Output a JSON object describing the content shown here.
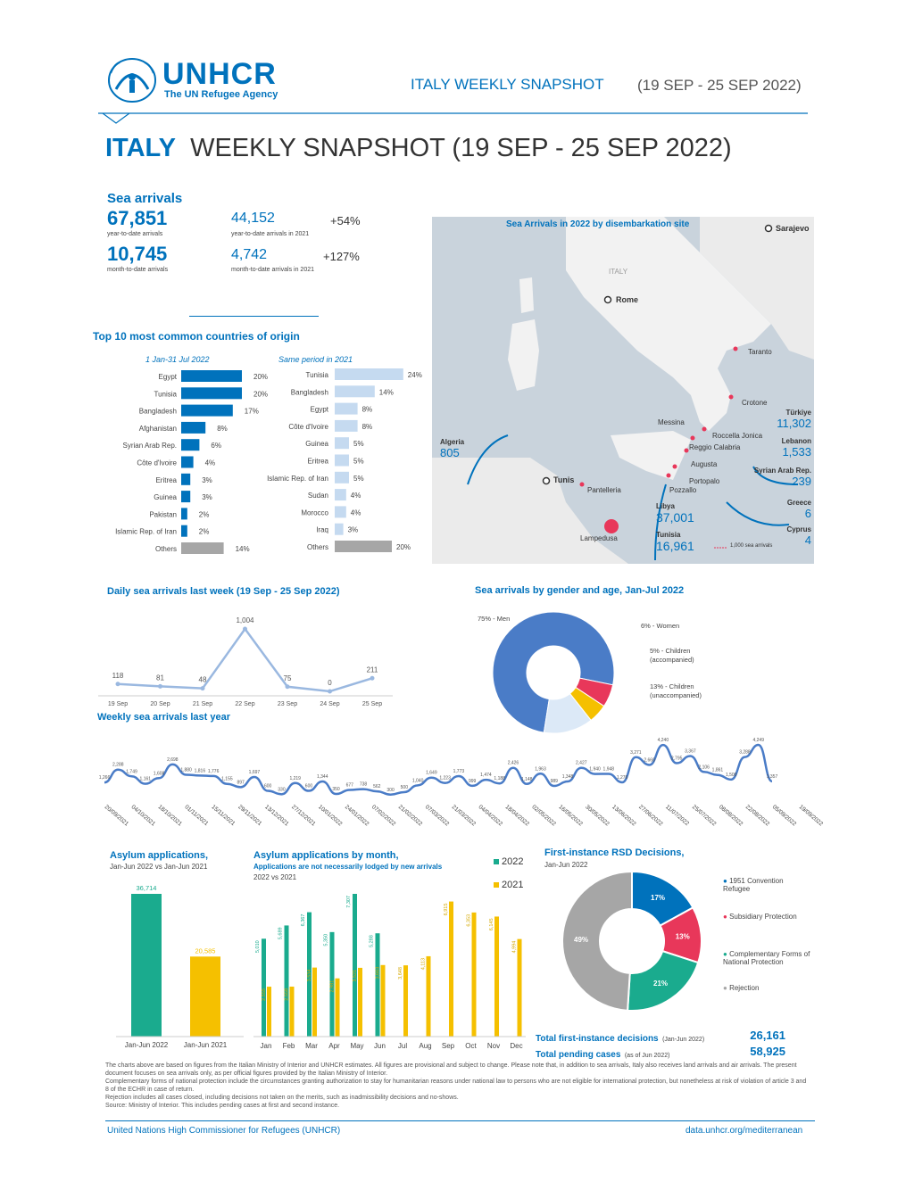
{
  "header": {
    "logo": "UNHCR",
    "logo_sub": "The UN Refugee Agency",
    "right_title": "ITALY WEEKLY SNAPSHOT",
    "right_date": "(19 SEP - 25 SEP 2022)"
  },
  "title": {
    "country": "ITALY",
    "rest": "WEEKLY SNAPSHOT (19 SEP - 25 SEP 2022)"
  },
  "sea_arrivals": {
    "heading": "Sea arrivals",
    "ytd": "67,851",
    "ytd_label": "year-to-date arrivals",
    "ytd_2021": "44,152",
    "ytd_2021_label": "year-to-date arrivals in 2021",
    "ytd_change": "+54%",
    "mtd": "10,745",
    "mtd_label": "month-to-date arrivals",
    "mtd_2021": "4,742",
    "mtd_2021_label": "month-to-date arrivals in 2021",
    "mtd_change": "+127%"
  },
  "origin": {
    "heading": "Top 10 most common countries of origin",
    "col1_title": "1 Jan-31 Jul 2022",
    "col2_title": "Same period in 2021",
    "col1": [
      {
        "name": "Egypt",
        "value": 20,
        "label": "20%"
      },
      {
        "name": "Tunisia",
        "value": 20,
        "label": "20%"
      },
      {
        "name": "Bangladesh",
        "value": 17,
        "label": "17%"
      },
      {
        "name": "Afghanistan",
        "value": 8,
        "label": "8%"
      },
      {
        "name": "Syrian Arab Rep.",
        "value": 6,
        "label": "6%"
      },
      {
        "name": "Côte d'Ivoire",
        "value": 4,
        "label": "4%"
      },
      {
        "name": "Eritrea",
        "value": 3,
        "label": "3%"
      },
      {
        "name": "Guinea",
        "value": 3,
        "label": "3%"
      },
      {
        "name": "Pakistan",
        "value": 2,
        "label": "2%"
      },
      {
        "name": "Islamic Rep. of Iran",
        "value": 2,
        "label": "2%"
      },
      {
        "name": "Others",
        "value": 14,
        "label": "14%"
      }
    ],
    "col2": [
      {
        "name": "Tunisia",
        "value": 24,
        "label": "24%"
      },
      {
        "name": "Bangladesh",
        "value": 14,
        "label": "14%"
      },
      {
        "name": "Egypt",
        "value": 8,
        "label": "8%"
      },
      {
        "name": "Côte d'Ivoire",
        "value": 8,
        "label": "8%"
      },
      {
        "name": "Guinea",
        "value": 5,
        "label": "5%"
      },
      {
        "name": "Eritrea",
        "value": 5,
        "label": "5%"
      },
      {
        "name": "Islamic Rep. of Iran",
        "value": 5,
        "label": "5%"
      },
      {
        "name": "Sudan",
        "value": 4,
        "label": "4%"
      },
      {
        "name": "Morocco",
        "value": 4,
        "label": "4%"
      },
      {
        "name": "Iraq",
        "value": 3,
        "label": "3%"
      },
      {
        "name": "Others",
        "value": 20,
        "label": "20%"
      }
    ]
  },
  "map": {
    "title": "Sea Arrivals in 2022 by disembarkation site",
    "cities": [
      "Rome",
      "Sarajevo",
      "Taranto",
      "Crotone",
      "Messina",
      "Roccella Jonica",
      "Reggio Calabria",
      "Augusta",
      "Portopalo",
      "Pozzallo",
      "Pantelleria",
      "Lampedusa",
      "Tunis"
    ],
    "land_label": "ITALY",
    "origins": [
      {
        "name": "Algeria",
        "value": "805"
      },
      {
        "name": "Türkiye",
        "value": "11,302"
      },
      {
        "name": "Lebanon",
        "value": "1,533"
      },
      {
        "name": "Syrian Arab Rep.",
        "value": "239"
      },
      {
        "name": "Greece",
        "value": "6"
      },
      {
        "name": "Cyprus",
        "value": "4"
      },
      {
        "name": "Libya",
        "value": "37,001"
      },
      {
        "name": "Tunisia",
        "value": "16,961"
      }
    ],
    "legend": "1,000 sea arrivals"
  },
  "daily": {
    "title": "Daily sea arrivals last week (19 Sep - 25 Sep 2022)",
    "x": [
      "19 Sep",
      "20 Sep",
      "21 Sep",
      "22 Sep",
      "23 Sep",
      "24 Sep",
      "25 Sep"
    ],
    "values": [
      118,
      81,
      48,
      1004,
      75,
      0,
      211
    ],
    "labels": [
      "118",
      "81",
      "48",
      "1,004",
      "75",
      "0",
      "211"
    ]
  },
  "gender": {
    "title": "Sea arrivals by gender and age, Jan-Jul 2022",
    "slices": [
      {
        "label": "75% - Men",
        "value": 75,
        "color": "#4a7cc7"
      },
      {
        "label": "6% - Women",
        "value": 6,
        "color": "#e8375a"
      },
      {
        "label": "5% - Children (accompanied)",
        "value": 5,
        "color": "#f5c000"
      },
      {
        "label": "13% - Children (unaccompanied)",
        "value": 13,
        "color": "#dce9f7"
      }
    ]
  },
  "weekly": {
    "title": "Weekly sea arrivals last year",
    "values": [
      1266,
      2288,
      1749,
      1161,
      1608,
      2698,
      1880,
      1816,
      1776,
      1155,
      897,
      1697,
      600,
      330,
      1219,
      600,
      1344,
      350,
      677,
      738,
      562,
      300,
      500,
      1040,
      1649,
      1223,
      1773,
      999,
      1474,
      1188,
      2426,
      1148,
      1963,
      989,
      1348,
      2427,
      1940,
      1948,
      1276,
      3271,
      2660,
      4240,
      2795,
      3367,
      2106,
      1861,
      1500,
      3288,
      4249,
      1357
    ],
    "labels": [
      "1,266",
      "2,288",
      "1,749",
      "1,161",
      "1,608",
      "2,698",
      "1,880",
      "1,816",
      "1,776",
      "1,155",
      "897",
      "1,697",
      "600",
      "330",
      "1,219",
      "600",
      "1,344",
      "350",
      "677",
      "738",
      "562",
      "300",
      "500",
      "1,040",
      "1,649",
      "1,223",
      "1,773",
      "999",
      "1,474",
      "1,188",
      "2,426",
      "1,148",
      "1,963",
      "989",
      "1,348",
      "2,427",
      "1,940",
      "1,948",
      "1,276",
      "3,271",
      "2,660",
      "4,240",
      "2,795",
      "3,367",
      "2,106",
      "1,861",
      "1,500",
      "3,288",
      "4,249",
      "1,357"
    ],
    "dates": [
      "20/09/2021",
      "04/10/2021",
      "18/10/2021",
      "01/11/2021",
      "15/11/2021",
      "29/11/2021",
      "13/12/2021",
      "27/12/2021",
      "10/01/2022",
      "24/01/2022",
      "07/02/2022",
      "21/02/2022",
      "07/03/2022",
      "21/03/2022",
      "04/04/2022",
      "18/04/2022",
      "02/05/2022",
      "16/05/2022",
      "30/05/2022",
      "13/06/2022",
      "27/06/2022",
      "11/07/2022",
      "25/07/2022",
      "08/08/2022",
      "22/08/2022",
      "05/09/2022",
      "19/09/2022"
    ]
  },
  "asylum": {
    "title": "Asylum applications,",
    "subtitle": "Jan-Jun 2022 vs Jan-Jun 2021",
    "categories": [
      "Jan-Jun 2022",
      "Jan-Jun 2021"
    ],
    "values": [
      36714,
      20585
    ],
    "labels": [
      "36,714",
      "20,585"
    ],
    "colors": [
      "#1aab8e",
      "#f5c000"
    ]
  },
  "asylum_month": {
    "title": "Asylum applications by month,",
    "subtitle1": "Applications are not necessarily lodged by new arrivals",
    "subtitle2": "2022 vs 2021",
    "legend": [
      "2022",
      "2021"
    ],
    "categories": [
      "Jan",
      "Feb",
      "Mar",
      "Apr",
      "May",
      "Jun",
      "Jul",
      "Aug",
      "Sep",
      "Oct",
      "Nov",
      "Dec"
    ],
    "series_2022": [
      5010,
      5689,
      6367,
      5350,
      7307,
      5288,
      null,
      null,
      null,
      null,
      null,
      null
    ],
    "labels_2022": [
      "5,010",
      "5,689",
      "6,367",
      "5,350",
      "7,307",
      "5,288",
      "",
      "",
      "",
      "",
      "",
      ""
    ],
    "series_2021": [
      2555,
      2558,
      3534,
      2981,
      3521,
      3663,
      3648,
      4113,
      6915,
      6353,
      6145,
      4994
    ],
    "labels_2021": [
      "2,555",
      "2,558",
      "3,534",
      "2,981",
      "3,521",
      "3,663",
      "3,648",
      "4,113",
      "6,915",
      "6,353",
      "6,145",
      "4,994"
    ]
  },
  "rsd": {
    "title": "First-instance RSD Decisions,",
    "subtitle": "Jan-Jun 2022",
    "slices": [
      {
        "label": "1951 Convention Refugee",
        "value": 17,
        "pct": "17%",
        "color": "#0072bc"
      },
      {
        "label": "Subsidiary Protection",
        "value": 13,
        "pct": "13%",
        "color": "#e8375a"
      },
      {
        "label": "Complementary Forms of National Protection",
        "value": 21,
        "pct": "21%",
        "color": "#1aab8e"
      },
      {
        "label": "Rejection",
        "value": 49,
        "pct": "49%",
        "color": "#a6a6a6"
      }
    ],
    "total_label": "Total first-instance decisions",
    "total_note": "(Jan-Jun 2022)",
    "total": "26,161",
    "pending_label": "Total pending cases",
    "pending_note": "(as of Jun 2022)",
    "pending": "58,925"
  },
  "footnotes": [
    "The charts above are based on figures from the Italian Ministry of Interior and UNHCR estimates. All figures are provisional and subject to change. Please note that, in addition to sea arrivals, Italy also receives land arrivals and air arrivals. The present document focuses on sea arrivals only, as per official figures provided by the Italian Ministry of Interior.",
    "Complementary forms of national protection include the circumstances granting authorization to stay for humanitarian reasons under national law to persons who are not eligible for international protection, but nonetheless at risk of violation of article 3 and 8 of the ECHR in case of return.",
    "Rejection includes all cases closed, including decisions not taken on the merits, such as inadmissibility decisions and no-shows.",
    "Source: Ministry of Interior. This includes pending cases at first and second instance."
  ],
  "footer": {
    "left": "United Nations High Commissioner for Refugees (UNHCR)",
    "right": "data.unhcr.org/mediterranean"
  }
}
